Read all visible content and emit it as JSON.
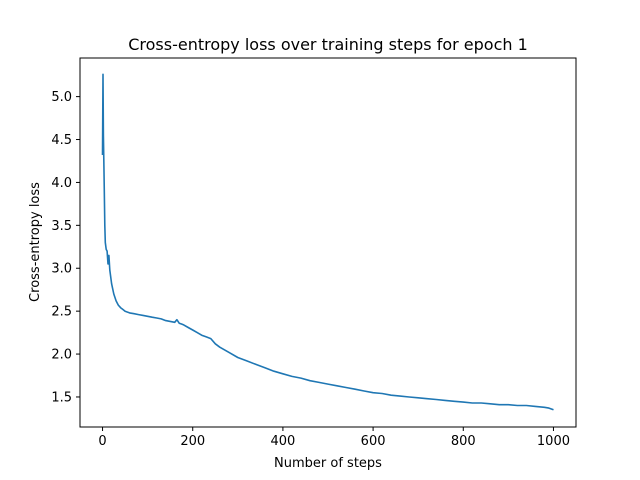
{
  "chart_data": {
    "type": "line",
    "title": "Cross-entropy loss over training steps for epoch 1",
    "xlabel": "Number of steps",
    "ylabel": "Cross-entropy loss",
    "xlim": [
      -50,
      1050
    ],
    "ylim": [
      1.15,
      5.45
    ],
    "xticks": [
      0,
      200,
      400,
      600,
      800,
      1000
    ],
    "xtick_labels": [
      "0",
      "200",
      "400",
      "600",
      "800",
      "1000"
    ],
    "yticks": [
      1.5,
      2.0,
      2.5,
      3.0,
      3.5,
      4.0,
      4.5,
      5.0
    ],
    "ytick_labels": [
      "1.5",
      "2.0",
      "2.5",
      "3.0",
      "3.5",
      "4.0",
      "4.5",
      "5.0"
    ],
    "grid": false,
    "legend": "none",
    "series": [
      {
        "color": "#1f77b4",
        "x": [
          0,
          1,
          2,
          3,
          4,
          5,
          6,
          8,
          10,
          12,
          14,
          16,
          18,
          20,
          25,
          30,
          35,
          40,
          45,
          50,
          60,
          70,
          80,
          90,
          100,
          110,
          120,
          130,
          140,
          150,
          160,
          165,
          170,
          175,
          180,
          190,
          200,
          210,
          220,
          230,
          240,
          250,
          260,
          280,
          300,
          320,
          340,
          360,
          380,
          400,
          420,
          440,
          460,
          480,
          500,
          520,
          540,
          560,
          580,
          600,
          620,
          640,
          660,
          680,
          700,
          720,
          740,
          760,
          780,
          800,
          820,
          840,
          860,
          880,
          900,
          920,
          940,
          960,
          980,
          990,
          1000
        ],
        "y": [
          4.32,
          5.26,
          4.55,
          4.2,
          3.9,
          3.5,
          3.3,
          3.22,
          3.2,
          3.05,
          3.15,
          2.98,
          2.9,
          2.82,
          2.7,
          2.62,
          2.57,
          2.54,
          2.52,
          2.5,
          2.48,
          2.47,
          2.46,
          2.45,
          2.44,
          2.43,
          2.42,
          2.41,
          2.39,
          2.38,
          2.37,
          2.4,
          2.36,
          2.35,
          2.34,
          2.31,
          2.28,
          2.25,
          2.22,
          2.2,
          2.18,
          2.12,
          2.08,
          2.02,
          1.96,
          1.92,
          1.88,
          1.84,
          1.8,
          1.77,
          1.74,
          1.72,
          1.69,
          1.67,
          1.65,
          1.63,
          1.61,
          1.59,
          1.57,
          1.55,
          1.54,
          1.52,
          1.51,
          1.5,
          1.49,
          1.48,
          1.47,
          1.46,
          1.45,
          1.44,
          1.43,
          1.43,
          1.42,
          1.41,
          1.41,
          1.4,
          1.4,
          1.39,
          1.38,
          1.37,
          1.35
        ]
      }
    ]
  }
}
